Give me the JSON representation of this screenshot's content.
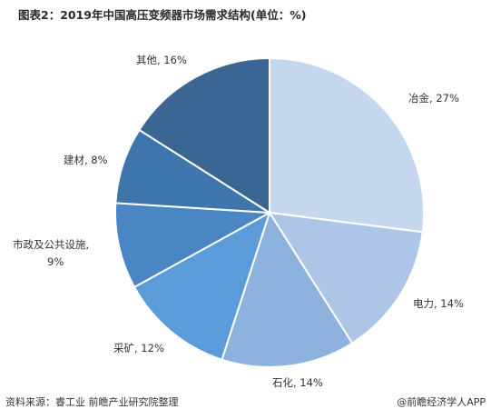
{
  "chart_data": {
    "type": "pie",
    "title": "图表2：2019年中国高压变频器市场需求结构(单位：%)",
    "slices": [
      {
        "label": "冶金",
        "value": 27,
        "display": "冶金, 27%",
        "color": "#c5d7ef"
      },
      {
        "label": "电力",
        "value": 14,
        "display": "电力, 14%",
        "color": "#adc6e8"
      },
      {
        "label": "石化",
        "value": 14,
        "display": "石化, 14%",
        "color": "#8eb2de"
      },
      {
        "label": "采矿",
        "value": 12,
        "display": "采矿, 12%",
        "color": "#5b9bd9"
      },
      {
        "label": "市政及公共设施",
        "value": 9,
        "display_line1": "市政及公共设施,",
        "display_line2": "9%",
        "color": "#4a86c4"
      },
      {
        "label": "建材",
        "value": 8,
        "display": "建材, 8%",
        "color": "#3f75ad"
      },
      {
        "label": "其他",
        "value": 16,
        "display": "其他, 16%",
        "color": "#3b6593"
      }
    ]
  },
  "footer": {
    "source": "资料来源：睿工业 前瞻产业研究院整理",
    "brand": "@前瞻经济学人APP"
  }
}
